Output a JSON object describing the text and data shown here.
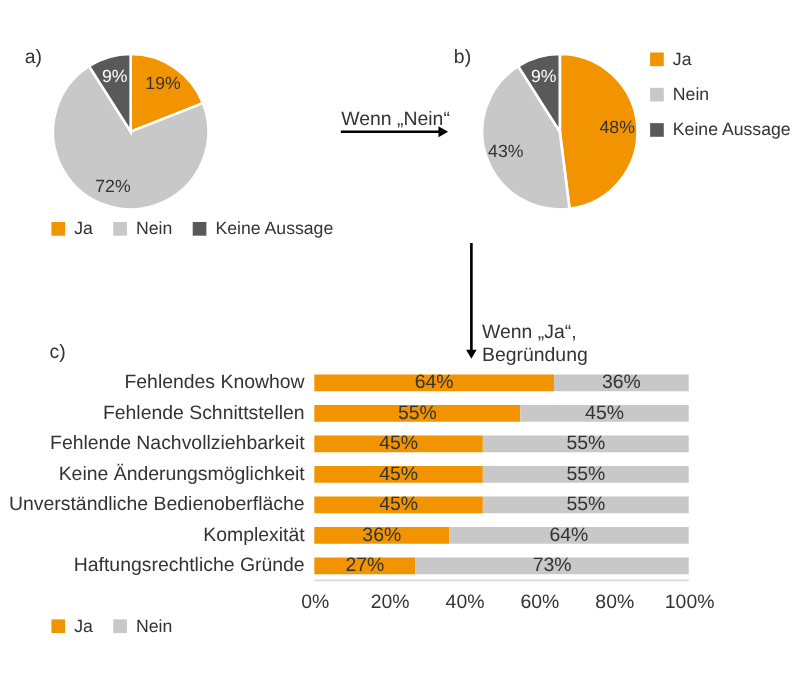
{
  "chart_data": [
    {
      "type": "pie",
      "annotations": [
        "a)",
        "Wenn „Nein“"
      ],
      "categories": [
        "Ja",
        "Nein",
        "Keine Aussage"
      ],
      "values": [
        19,
        72,
        9
      ],
      "colors": [
        "#f29400",
        "#c8c8c8",
        "#595959"
      ],
      "value_labels": [
        "19%",
        "72%",
        "9%"
      ],
      "legend": "bottom"
    },
    {
      "type": "pie",
      "annotations": [
        "b)"
      ],
      "categories": [
        "Ja",
        "Nein",
        "Keine Aussage"
      ],
      "values": [
        48,
        43,
        9
      ],
      "colors": [
        "#f29400",
        "#c8c8c8",
        "#595959"
      ],
      "value_labels": [
        "48%",
        "43%",
        "9%"
      ],
      "legend": "right"
    },
    {
      "type": "bar",
      "orientation": "horizontal",
      "stacked": true,
      "annotations": [
        "c)",
        "Wenn „Ja“, Begründung"
      ],
      "categories": [
        "Fehlendes Knowhow",
        "Fehlende Schnittstellen",
        "Fehlende Nachvollziehbarkeit",
        "Keine Änderungsmöglichkeit",
        "Unverständliche Bedienoberfläche",
        "Komplexität",
        "Haftungsrechtliche Gründe"
      ],
      "series": [
        {
          "name": "Ja",
          "color": "#f29400",
          "values": [
            64,
            55,
            45,
            45,
            45,
            36,
            27
          ],
          "value_labels": [
            "64%",
            "55%",
            "45%",
            "45%",
            "45%",
            "36%",
            "27%"
          ]
        },
        {
          "name": "Nein",
          "color": "#c8c8c8",
          "values": [
            36,
            45,
            55,
            55,
            55,
            64,
            73
          ],
          "value_labels": [
            "36%",
            "45%",
            "55%",
            "55%",
            "55%",
            "64%",
            "73%"
          ]
        }
      ],
      "xlim": [
        0,
        100
      ],
      "xticks": [
        {
          "value": 0,
          "label": "0%"
        },
        {
          "value": 20,
          "label": "20%"
        },
        {
          "value": 40,
          "label": "40%"
        },
        {
          "value": 60,
          "label": "60%"
        },
        {
          "value": 80,
          "label": "80%"
        },
        {
          "value": 100,
          "label": "100%"
        }
      ],
      "grid": false,
      "legend": "bottom"
    }
  ]
}
